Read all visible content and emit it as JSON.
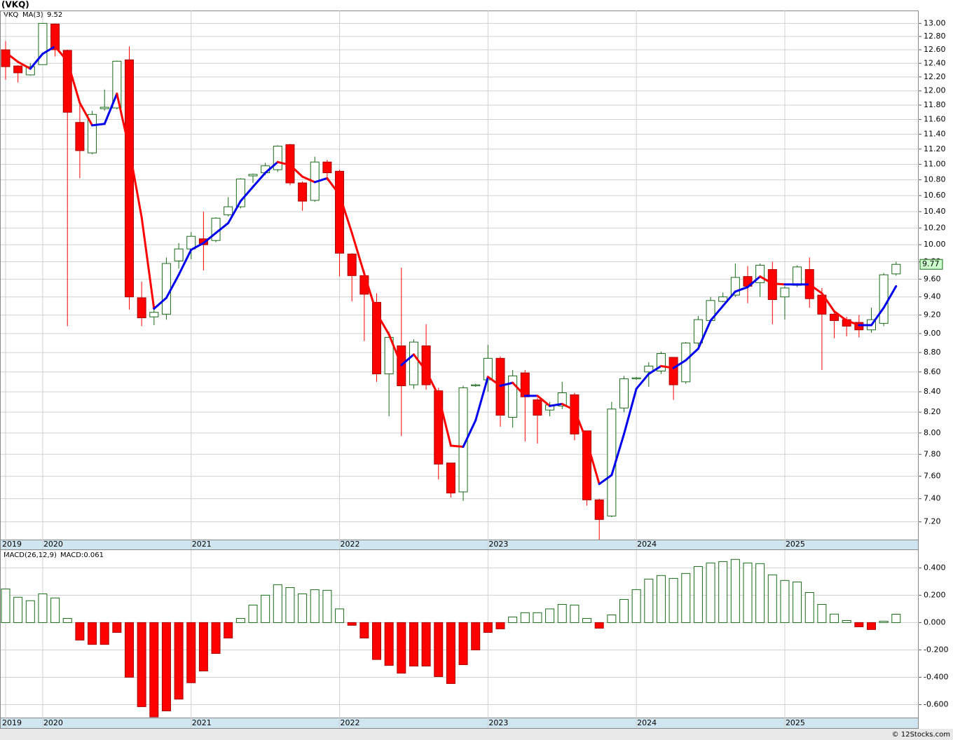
{
  "chart_data": [
    {
      "type": "candlestick",
      "title": "(VKQ)",
      "symbol": "VKQ",
      "log_scale": true,
      "grid": true,
      "up_color": "#1a6b1a",
      "down_color": "#ff0000",
      "categories": [
        "2019",
        null,
        null,
        "2020",
        null,
        null,
        null,
        null,
        null,
        null,
        null,
        null,
        null,
        null,
        null,
        "2021",
        null,
        null,
        null,
        null,
        null,
        null,
        null,
        null,
        null,
        null,
        null,
        "2022",
        null,
        null,
        null,
        null,
        null,
        null,
        null,
        null,
        null,
        null,
        null,
        "2023",
        null,
        null,
        null,
        null,
        null,
        null,
        null,
        null,
        null,
        null,
        null,
        "2024",
        null,
        null,
        null,
        null,
        null,
        null,
        null,
        null,
        null,
        null,
        null,
        "2025",
        null,
        null,
        null,
        null,
        null,
        null,
        null,
        null,
        null
      ],
      "open": [
        12.6,
        12.36,
        12.23,
        12.38,
        12.99,
        12.59,
        11.56,
        11.15,
        11.75,
        11.76,
        12.45,
        9.39,
        9.18,
        9.21,
        9.81,
        9.95,
        10.07,
        10.05,
        10.36,
        10.46,
        10.85,
        10.89,
        10.93,
        11.26,
        10.76,
        10.54,
        11.03,
        10.91,
        9.89,
        9.64,
        9.34,
        8.58,
        8.87,
        8.47,
        8.87,
        8.41,
        7.72,
        7.46,
        8.46,
        8.52,
        8.74,
        8.15,
        8.59,
        8.32,
        8.22,
        8.26,
        8.37,
        8.02,
        7.39,
        7.25,
        8.24,
        8.53,
        8.6,
        8.61,
        8.75,
        8.5,
        8.9,
        9.14,
        9.35,
        9.42,
        9.63,
        9.56,
        9.71,
        9.4,
        9.53,
        9.71,
        9.42,
        9.21,
        9.15,
        9.12,
        9.04,
        9.11,
        9.66
      ],
      "high": [
        12.73,
        12.37,
        12.4,
        13.0,
        13.0,
        12.6,
        11.82,
        11.72,
        12.02,
        12.44,
        12.65,
        9.57,
        9.3,
        9.85,
        10.02,
        10.15,
        10.4,
        10.33,
        10.58,
        10.82,
        10.88,
        11.02,
        11.25,
        11.27,
        10.78,
        11.1,
        11.06,
        10.93,
        9.9,
        9.7,
        9.44,
        9.02,
        9.73,
        8.94,
        9.1,
        8.44,
        7.72,
        8.46,
        8.48,
        8.88,
        8.76,
        8.62,
        8.62,
        8.34,
        8.3,
        8.5,
        8.39,
        8.02,
        7.4,
        8.3,
        8.56,
        8.55,
        8.7,
        8.81,
        8.75,
        8.91,
        9.19,
        9.4,
        9.45,
        9.78,
        9.75,
        9.78,
        9.8,
        9.52,
        9.76,
        9.85,
        9.5,
        9.23,
        9.18,
        9.2,
        9.28,
        9.67,
        9.8
      ],
      "low": [
        12.16,
        12.12,
        12.22,
        12.38,
        12.5,
        9.08,
        10.82,
        11.13,
        11.72,
        11.74,
        9.26,
        9.08,
        9.09,
        9.15,
        9.72,
        9.83,
        9.7,
        10.03,
        10.34,
        10.44,
        10.76,
        10.86,
        10.9,
        10.73,
        10.41,
        10.52,
        10.79,
        9.63,
        9.35,
        8.92,
        8.5,
        8.16,
        7.97,
        8.43,
        8.42,
        7.57,
        7.41,
        7.38,
        8.45,
        8.4,
        8.06,
        8.05,
        7.92,
        7.9,
        8.16,
        8.23,
        7.93,
        7.34,
        7.05,
        7.24,
        8.2,
        8.52,
        8.45,
        8.58,
        8.32,
        8.48,
        8.87,
        9.12,
        9.34,
        9.4,
        9.33,
        9.4,
        9.1,
        9.15,
        9.51,
        9.28,
        8.62,
        8.95,
        8.97,
        8.96,
        9.01,
        9.08,
        9.64
      ],
      "close": [
        12.35,
        12.26,
        12.35,
        13.0,
        12.6,
        11.7,
        11.18,
        11.67,
        11.77,
        12.43,
        9.4,
        9.17,
        9.23,
        9.78,
        9.95,
        10.1,
        10.0,
        10.32,
        10.46,
        10.81,
        10.87,
        10.98,
        11.24,
        10.76,
        10.53,
        11.03,
        10.89,
        9.9,
        9.64,
        9.43,
        8.58,
        8.96,
        8.46,
        8.91,
        8.47,
        7.71,
        7.45,
        8.44,
        8.47,
        8.74,
        8.17,
        8.56,
        8.35,
        8.17,
        8.27,
        8.39,
        7.99,
        7.39,
        7.22,
        8.23,
        8.53,
        8.54,
        8.66,
        8.79,
        8.47,
        8.9,
        9.15,
        9.36,
        9.4,
        9.62,
        9.52,
        9.76,
        9.37,
        9.5,
        9.74,
        9.38,
        9.21,
        9.14,
        9.08,
        9.04,
        9.15,
        9.65,
        9.77
      ],
      "ma": {
        "name": "MA(3)",
        "up_color": "#0000ee",
        "down_color": "#ff0000",
        "values": [
          12.56,
          12.42,
          12.32,
          12.54,
          12.65,
          12.43,
          11.83,
          11.52,
          11.54,
          11.96,
          11.2,
          10.33,
          9.27,
          9.39,
          9.65,
          9.94,
          10.02,
          10.14,
          10.26,
          10.53,
          10.71,
          10.89,
          11.03,
          10.99,
          10.84,
          10.77,
          10.82,
          10.61,
          10.14,
          9.66,
          9.22,
          8.99,
          8.67,
          8.78,
          8.61,
          8.36,
          7.88,
          7.87,
          8.12,
          8.55,
          8.46,
          8.49,
          8.36,
          8.36,
          8.26,
          8.28,
          8.22,
          7.92,
          7.53,
          7.61,
          7.99,
          8.43,
          8.58,
          8.66,
          8.64,
          8.72,
          8.84,
          9.14,
          9.3,
          9.46,
          9.51,
          9.63,
          9.55,
          9.54,
          9.54,
          9.54,
          9.44,
          9.24,
          9.14,
          9.09,
          9.09,
          9.28,
          9.52
        ]
      },
      "ylim": [
        7.05,
        13.2
      ],
      "yticks": [
        {
          "value": 7.2,
          "label": "7.20"
        },
        {
          "value": 7.4,
          "label": "7.40"
        },
        {
          "value": 7.6,
          "label": "7.60"
        },
        {
          "value": 7.8,
          "label": "7.80"
        },
        {
          "value": 8.0,
          "label": "8.00"
        },
        {
          "value": 8.2,
          "label": "8.20"
        },
        {
          "value": 8.4,
          "label": "8.40"
        },
        {
          "value": 8.6,
          "label": "8.60"
        },
        {
          "value": 8.8,
          "label": "8.80"
        },
        {
          "value": 9.0,
          "label": "9.00"
        },
        {
          "value": 9.2,
          "label": "9.20"
        },
        {
          "value": 9.4,
          "label": "9.40"
        },
        {
          "value": 9.6,
          "label": "9.60"
        },
        {
          "value": 9.8,
          "label": "9.80"
        },
        {
          "value": 10.0,
          "label": "10.00"
        },
        {
          "value": 10.2,
          "label": "10.20"
        },
        {
          "value": 10.4,
          "label": "10.40"
        },
        {
          "value": 10.6,
          "label": "10.60"
        },
        {
          "value": 10.8,
          "label": "10.80"
        },
        {
          "value": 11.0,
          "label": "11.00"
        },
        {
          "value": 11.2,
          "label": "11.20"
        },
        {
          "value": 11.4,
          "label": "11.40"
        },
        {
          "value": 11.6,
          "label": "11.60"
        },
        {
          "value": 11.8,
          "label": "11.80"
        },
        {
          "value": 12.0,
          "label": "12.00"
        },
        {
          "value": 12.2,
          "label": "12.20"
        },
        {
          "value": 12.4,
          "label": "12.40"
        },
        {
          "value": 12.6,
          "label": "12.60"
        },
        {
          "value": 12.8,
          "label": "12.80"
        },
        {
          "value": 13.0,
          "label": "13.00"
        }
      ]
    },
    {
      "type": "bar",
      "title": "MACD(26,12,9)",
      "legend_value": "MACD:0.061",
      "grid": true,
      "up_color": "#1a6b1a",
      "down_color": "#ff0000",
      "values": [
        0.246,
        0.185,
        0.16,
        0.21,
        0.18,
        0.03,
        -0.128,
        -0.16,
        -0.16,
        -0.072,
        -0.4,
        -0.615,
        -0.69,
        -0.646,
        -0.56,
        -0.44,
        -0.354,
        -0.226,
        -0.113,
        0.03,
        0.128,
        0.2,
        0.277,
        0.256,
        0.21,
        0.24,
        0.236,
        0.1,
        -0.02,
        -0.113,
        -0.27,
        -0.313,
        -0.37,
        -0.318,
        -0.318,
        -0.395,
        -0.446,
        -0.308,
        -0.2,
        -0.072,
        -0.046,
        0.041,
        0.072,
        0.072,
        0.1,
        0.133,
        0.128,
        0.03,
        -0.041,
        0.056,
        0.169,
        0.241,
        0.318,
        0.344,
        0.323,
        0.359,
        0.41,
        0.436,
        0.446,
        0.462,
        0.436,
        0.431,
        0.349,
        0.308,
        0.297,
        0.22,
        0.133,
        0.062,
        0.015,
        -0.031,
        -0.051,
        0.01,
        0.061
      ],
      "ylim": [
        -0.7,
        0.53
      ],
      "yticks": [
        {
          "value": -0.6,
          "label": "-0.600"
        },
        {
          "value": -0.4,
          "label": "-0.400"
        },
        {
          "value": -0.2,
          "label": "-0.200"
        },
        {
          "value": 0,
          "label": "0.000"
        },
        {
          "value": 0.2,
          "label": "0.200"
        },
        {
          "value": 0.4,
          "label": "0.400"
        }
      ]
    }
  ],
  "footer": "© 12Stocks.com"
}
